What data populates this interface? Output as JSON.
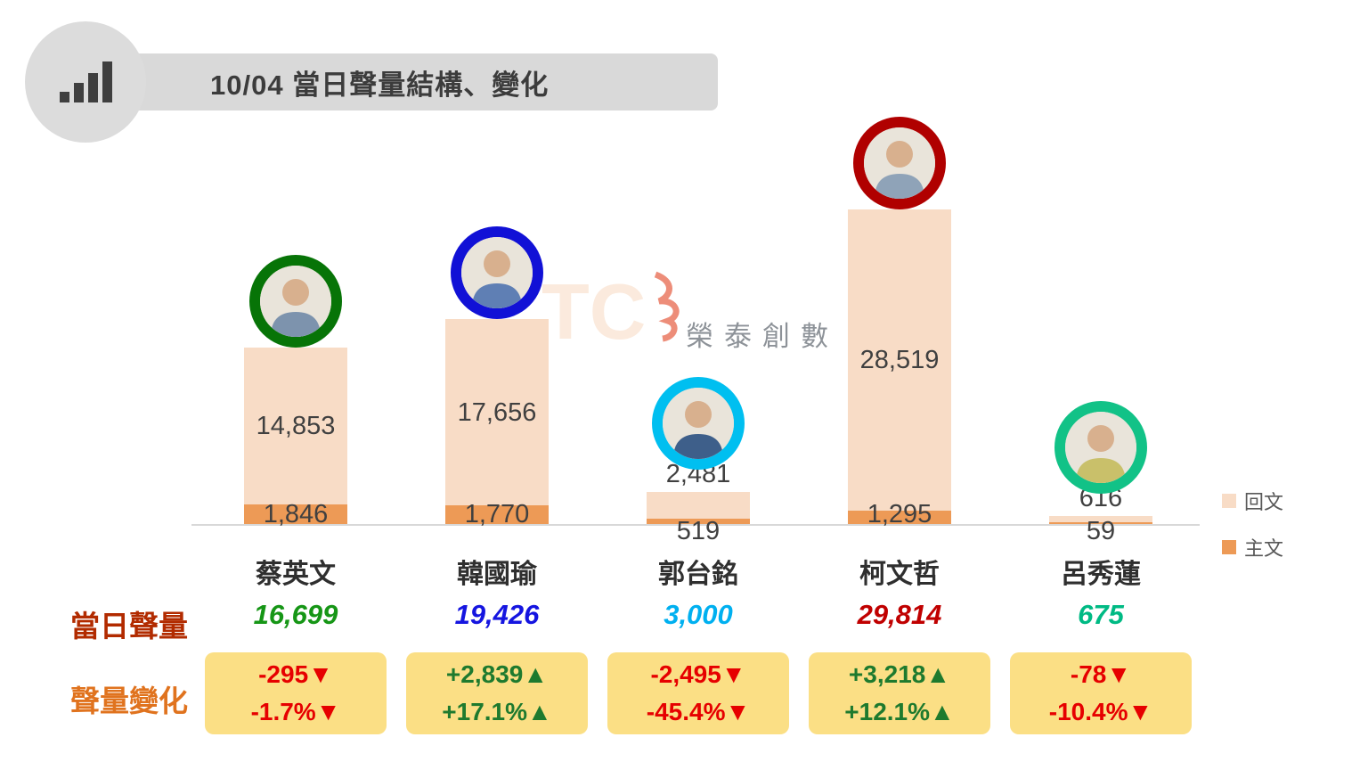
{
  "header": {
    "title": "10/04 當日聲量結構、變化"
  },
  "watermark": {
    "text": "榮泰創數"
  },
  "rows": {
    "total_label": "當日聲量",
    "change_label": "聲量變化"
  },
  "legend": [
    {
      "label": "回文",
      "color": "#F8DCC6"
    },
    {
      "label": "主文",
      "color": "#ED9A56"
    }
  ],
  "chart_data": {
    "type": "bar",
    "stacked": true,
    "title": "10/04 當日聲量結構、變化",
    "categories": [
      "蔡英文",
      "韓國瑜",
      "郭台銘",
      "柯文哲",
      "呂秀蓮"
    ],
    "series": [
      {
        "name": "回文",
        "values": [
          14853,
          17656,
          2481,
          28519,
          616
        ],
        "color": "#F8DCC6"
      },
      {
        "name": "主文",
        "values": [
          1846,
          1770,
          519,
          1295,
          59
        ],
        "color": "#ED9A56"
      }
    ],
    "totals": [
      16699,
      19426,
      3000,
      29814,
      675
    ],
    "changes": [
      {
        "value": -295,
        "pct": -1.7,
        "direction": "down"
      },
      {
        "value": 2839,
        "pct": 17.1,
        "direction": "up"
      },
      {
        "value": -2495,
        "pct": -45.4,
        "direction": "down"
      },
      {
        "value": 3218,
        "pct": 12.1,
        "direction": "up"
      },
      {
        "value": -78,
        "pct": -10.4,
        "direction": "down"
      }
    ],
    "ylim": [
      0,
      30000
    ],
    "grid": false,
    "legend_position": "right"
  },
  "candidates": [
    {
      "name": "蔡英文",
      "reply_label": "14,853",
      "main_label": "1,846",
      "total_label": "16,699",
      "total_color": "#169616",
      "ring_color": "#077407",
      "change_line1": "-295▼",
      "change_line2": "-1.7%▼",
      "change_color": "#E60000"
    },
    {
      "name": "韓國瑜",
      "reply_label": "17,656",
      "main_label": "1,770",
      "total_label": "19,426",
      "total_color": "#1515E0",
      "ring_color": "#1111D6",
      "change_line1": "+2,839▲",
      "change_line2": "+17.1%▲",
      "change_color": "#1E7A2E"
    },
    {
      "name": "郭台銘",
      "reply_label": "2,481",
      "main_label": "519",
      "total_label": "3,000",
      "total_color": "#00B0F0",
      "ring_color": "#00BFF0",
      "change_line1": "-2,495▼",
      "change_line2": "-45.4%▼",
      "change_color": "#E60000"
    },
    {
      "name": "柯文哲",
      "reply_label": "28,519",
      "main_label": "1,295",
      "total_label": "29,814",
      "total_color": "#C00000",
      "ring_color": "#B00000",
      "change_line1": "+3,218▲",
      "change_line2": "+12.1%▲",
      "change_color": "#1E7A2E"
    },
    {
      "name": "呂秀蓮",
      "reply_label": "616",
      "main_label": "59",
      "total_label": "675",
      "total_color": "#00BA84",
      "ring_color": "#12C287",
      "change_line1": "-78▼",
      "change_line2": "-10.4%▼",
      "change_color": "#E60000"
    }
  ]
}
